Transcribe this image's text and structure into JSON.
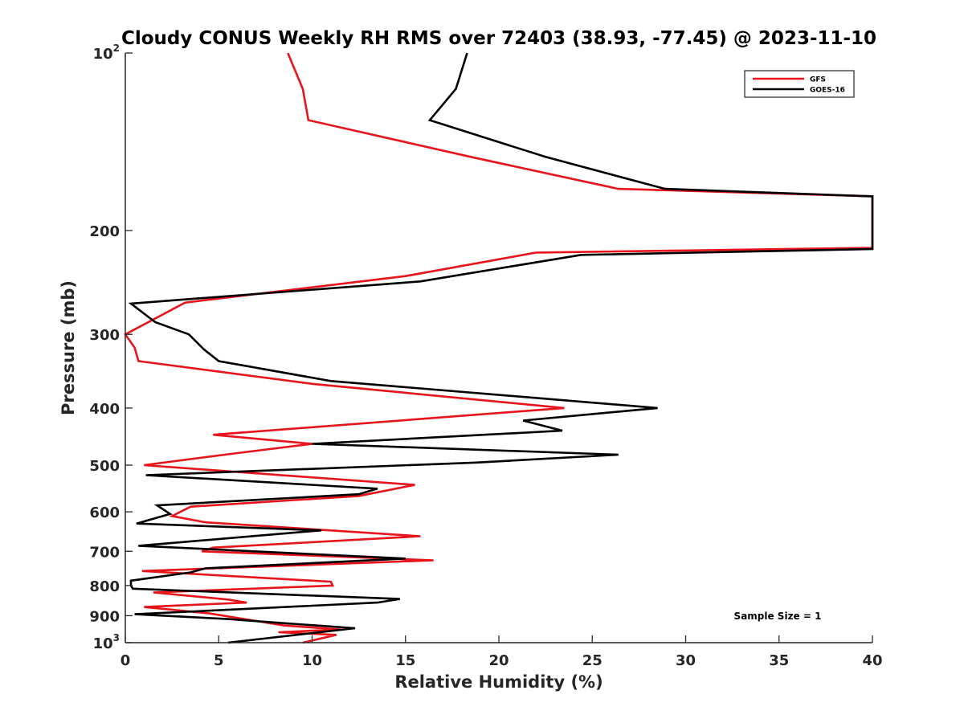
{
  "chart_data": {
    "type": "line",
    "title": "Cloudy CONUS Weekly RH RMS over 72403 (38.93, -77.45) @ 2023-11-10",
    "xlabel": "Relative Humidity (%)",
    "ylabel": "Pressure (mb)",
    "xlim": [
      0,
      40
    ],
    "ylim": [
      100,
      1000
    ],
    "y_scale": "log",
    "y_reversed": true,
    "grid": false,
    "legend_position": "top-right",
    "x_ticks": [
      "0",
      "5",
      "10",
      "15",
      "20",
      "25",
      "30",
      "35",
      "40"
    ],
    "y_ticks": [
      {
        "value": 100,
        "label": "10",
        "sup": "2"
      },
      {
        "value": 200,
        "label": "200",
        "sup": ""
      },
      {
        "value": 300,
        "label": "300",
        "sup": ""
      },
      {
        "value": 400,
        "label": "400",
        "sup": ""
      },
      {
        "value": 500,
        "label": "500",
        "sup": ""
      },
      {
        "value": 600,
        "label": "600",
        "sup": ""
      },
      {
        "value": 700,
        "label": "700",
        "sup": ""
      },
      {
        "value": 800,
        "label": "800",
        "sup": ""
      },
      {
        "value": 900,
        "label": "900",
        "sup": ""
      },
      {
        "value": 1000,
        "label": "10",
        "sup": "3"
      }
    ],
    "annotation": "Sample Size = 1",
    "series": [
      {
        "name": "GFS",
        "color": "#e8141b",
        "points": [
          [
            8.7,
            100
          ],
          [
            9.5,
            115
          ],
          [
            9.8,
            130
          ],
          [
            18.5,
            150
          ],
          [
            26.4,
            170
          ],
          [
            40,
            175
          ],
          [
            40,
            214
          ],
          [
            22.0,
            218
          ],
          [
            15.0,
            239
          ],
          [
            3.2,
            265
          ],
          [
            0,
            300
          ],
          [
            0.5,
            316
          ],
          [
            0.7,
            333
          ],
          [
            10.0,
            364
          ],
          [
            23.5,
            400
          ],
          [
            4.7,
            444
          ],
          [
            10.0,
            460
          ],
          [
            6.0,
            477
          ],
          [
            1.0,
            500
          ],
          [
            15.5,
            540
          ],
          [
            12.5,
            564
          ],
          [
            3.5,
            588
          ],
          [
            2.5,
            610
          ],
          [
            4.3,
            625
          ],
          [
            15.8,
            660
          ],
          [
            4.7,
            690
          ],
          [
            4.1,
            700
          ],
          [
            16.5,
            725
          ],
          [
            0.9,
            756
          ],
          [
            11.0,
            788
          ],
          [
            11.1,
            800
          ],
          [
            1.5,
            822
          ],
          [
            5.5,
            845
          ],
          [
            6.5,
            855
          ],
          [
            1.0,
            870
          ],
          [
            4.5,
            892
          ],
          [
            8.5,
            935
          ],
          [
            11.5,
            950
          ],
          [
            8.2,
            960
          ],
          [
            11.3,
            970
          ],
          [
            9.5,
            1000
          ]
        ]
      },
      {
        "name": "GOES-16",
        "color": "#000000",
        "points": [
          [
            18.3,
            100
          ],
          [
            17.7,
            115
          ],
          [
            16.3,
            130
          ],
          [
            22.5,
            150
          ],
          [
            28.9,
            170
          ],
          [
            40,
            175
          ],
          [
            40,
            215
          ],
          [
            24.4,
            220
          ],
          [
            15.8,
            244
          ],
          [
            0.3,
            266
          ],
          [
            1.6,
            286
          ],
          [
            3.4,
            300
          ],
          [
            4.2,
            318
          ],
          [
            5.0,
            333
          ],
          [
            11.0,
            360
          ],
          [
            28.5,
            400
          ],
          [
            21.3,
            420
          ],
          [
            23.4,
            437
          ],
          [
            10.0,
            460
          ],
          [
            26.4,
            480
          ],
          [
            18.8,
            495
          ],
          [
            1.1,
            520
          ],
          [
            13.5,
            548
          ],
          [
            12.5,
            560
          ],
          [
            1.7,
            585
          ],
          [
            2.4,
            605
          ],
          [
            0.6,
            628
          ],
          [
            10.5,
            645
          ],
          [
            0.7,
            685
          ],
          [
            15.0,
            720
          ],
          [
            4.3,
            748
          ],
          [
            3.5,
            760
          ],
          [
            0.3,
            785
          ],
          [
            0.3,
            800
          ],
          [
            0.4,
            810
          ],
          [
            14.7,
            843
          ],
          [
            13.5,
            855
          ],
          [
            0.5,
            895
          ],
          [
            5.5,
            912
          ],
          [
            7.5,
            922
          ],
          [
            12.3,
            945
          ],
          [
            5.5,
            1000
          ]
        ]
      }
    ]
  }
}
